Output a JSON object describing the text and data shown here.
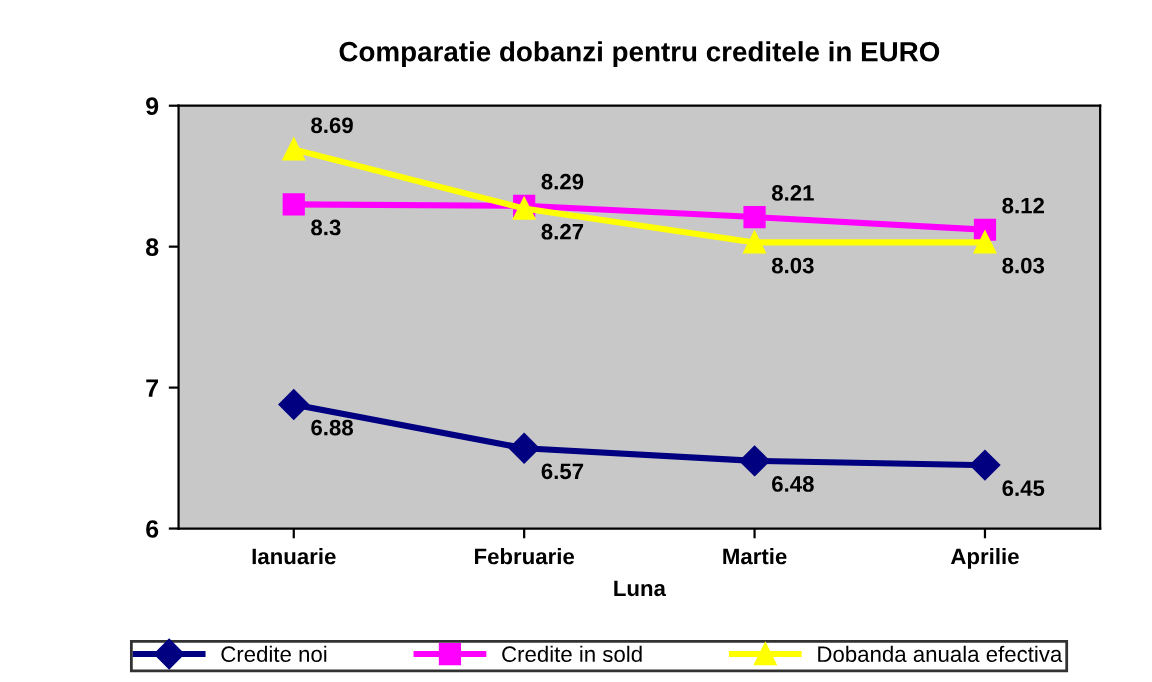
{
  "chart_data": {
    "type": "line",
    "title": "Comparatie dobanzi pentru creditele in EURO",
    "xlabel": "Luna",
    "categories": [
      "Ianuarie",
      "Februarie",
      "Martie",
      "Aprilie"
    ],
    "series": [
      {
        "name": "Credite noi",
        "color": "#000080",
        "marker": "diamond",
        "values": [
          6.88,
          6.57,
          6.48,
          6.45
        ]
      },
      {
        "name": "Credite in sold",
        "color": "#ff00ff",
        "marker": "square",
        "values": [
          8.3,
          8.29,
          8.21,
          8.12
        ]
      },
      {
        "name": "Dobanda anuala efectiva",
        "color": "#ffff00",
        "marker": "triangle",
        "values": [
          8.69,
          8.27,
          8.03,
          8.03
        ]
      }
    ],
    "ylim": [
      6,
      9
    ],
    "yticks": [
      6,
      7,
      8,
      9
    ],
    "data_labels": true,
    "grid": false,
    "legend": "bottom"
  }
}
